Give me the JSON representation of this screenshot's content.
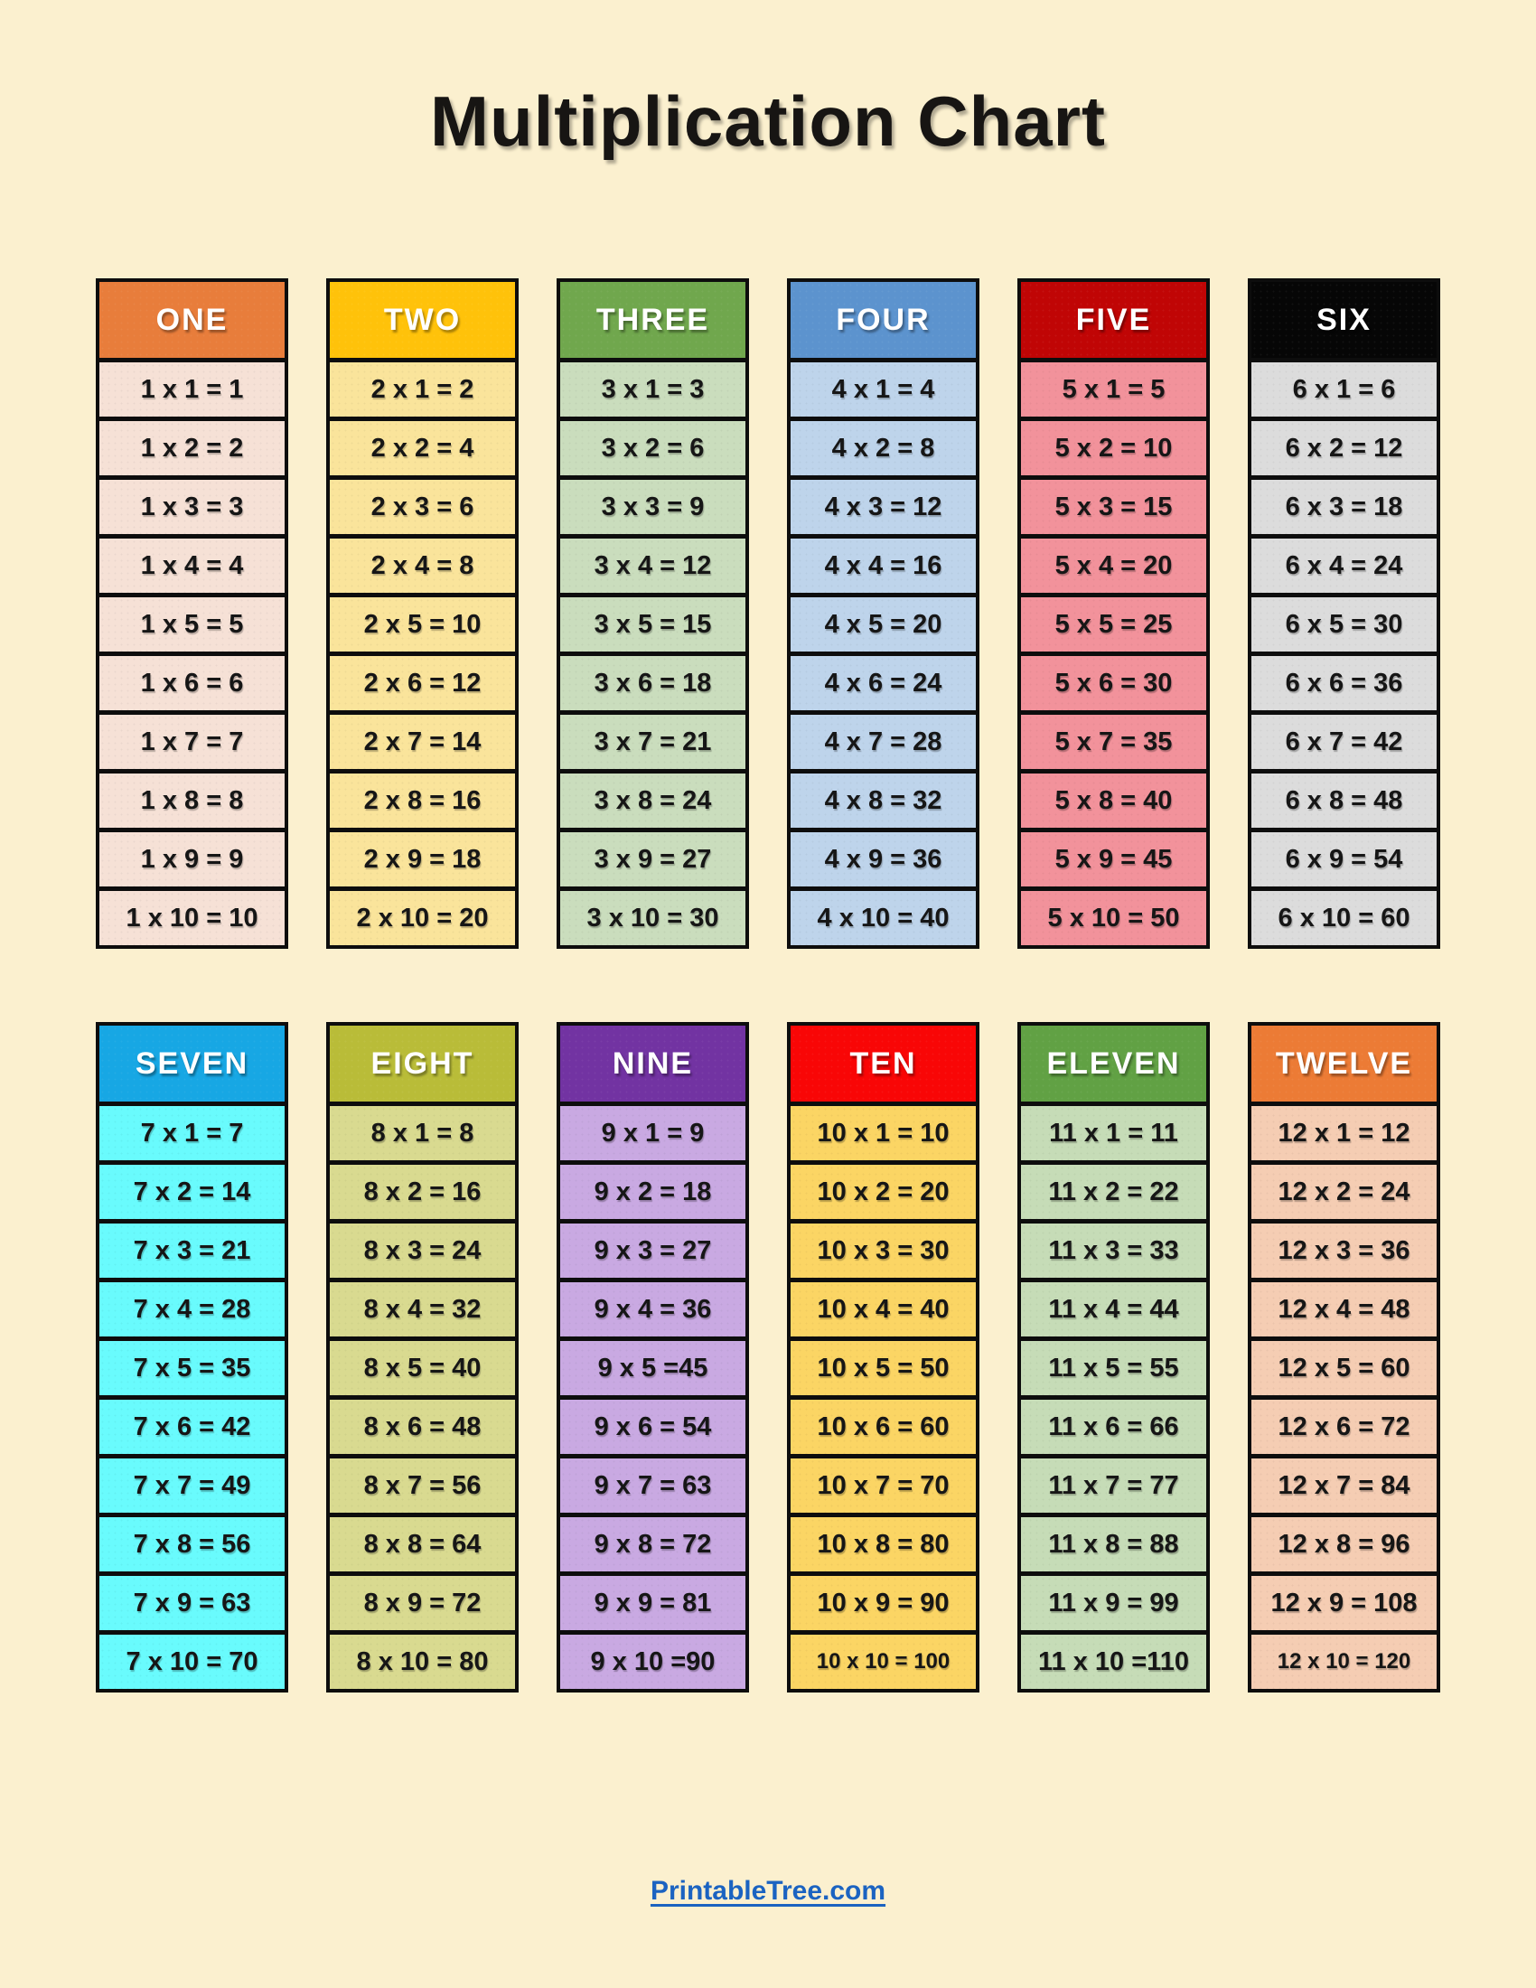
{
  "page": {
    "title": "Multiplication Chart"
  },
  "theme": {
    "background": "#FBF0CF",
    "border_color": "#0D0D0D",
    "cell_text_color": "#161616"
  },
  "groups": [
    {
      "tables": [
        {
          "label": "ONE",
          "header_bg": "#E87D3B",
          "header_text": "#FFFFFF",
          "body_bg": "#F6E1D6",
          "facts": [
            "1 x 1 = 1",
            "1 x 2 = 2",
            "1 x 3 = 3",
            "1 x 4 = 4",
            "1 x 5 = 5",
            "1 x 6 = 6",
            "1 x 7 = 7",
            "1 x 8 = 8",
            "1 x 9 = 9",
            "1 x 10 = 10"
          ]
        },
        {
          "label": "TWO",
          "header_bg": "#FFC20A",
          "header_text": "#FFFFFF",
          "body_bg": "#FAE49B",
          "facts": [
            "2 x 1 = 2",
            "2 x 2 = 4",
            "2 x 3 = 6",
            "2 x 4 = 8",
            "2 x 5 = 10",
            "2 x 6 = 12",
            "2 x 7 = 14",
            "2 x 8 = 16",
            "2 x 9 = 18",
            "2 x 10 = 20"
          ]
        },
        {
          "label": "THREE",
          "header_bg": "#70A74D",
          "header_text": "#FFFFFF",
          "body_bg": "#CADDBD",
          "facts": [
            "3 x 1 = 3",
            "3 x 2 = 6",
            "3 x 3 = 9",
            "3 x 4 = 12",
            "3 x 5 = 15",
            "3 x 6 = 18",
            "3 x 7 = 21",
            "3 x 8 = 24",
            "3 x 9 = 27",
            "3 x 10 = 30"
          ]
        },
        {
          "label": "FOUR",
          "header_bg": "#5C93CE",
          "header_text": "#FFFFFF",
          "body_bg": "#BED4EB",
          "facts": [
            "4 x 1 = 4",
            "4 x 2 = 8",
            "4 x 3 = 12",
            "4 x 4 = 16",
            "4 x 5 = 20",
            "4 x 6 = 24",
            "4 x 7 = 28",
            "4 x 8 = 32",
            "4 x 9 = 36",
            "4 x 10 = 40"
          ]
        },
        {
          "label": "FIVE",
          "header_bg": "#C00505",
          "header_text": "#FFFFFF",
          "body_bg": "#F2929B",
          "facts": [
            "5 x 1 = 5",
            "5 x 2 = 10",
            "5 x 3 = 15",
            "5 x 4 = 20",
            "5 x 5 = 25",
            "5 x 6 = 30",
            "5 x 7 = 35",
            "5 x 8 = 40",
            "5 x 9 = 45",
            "5 x 10 = 50"
          ]
        },
        {
          "label": "SIX",
          "header_bg": "#060606",
          "header_text": "#FFFFFF",
          "body_bg": "#DCDCDC",
          "facts": [
            "6 x 1 = 6",
            "6 x 2 = 12",
            "6 x 3 = 18",
            "6 x 4 = 24",
            "6 x 5 = 30",
            "6 x 6 = 36",
            "6 x 7 = 42",
            "6 x 8 = 48",
            "6 x 9 = 54",
            "6 x 10 = 60"
          ]
        }
      ]
    },
    {
      "tables": [
        {
          "label": "SEVEN",
          "header_bg": "#17A7E4",
          "header_text": "#FFFFFF",
          "body_bg": "#69FBFD",
          "facts": [
            "7 x 1 = 7",
            "7 x 2 = 14",
            "7 x 3 = 21",
            "7 x 4 = 28",
            "7 x 5 = 35",
            "7 x 6 = 42",
            "7 x 7 = 49",
            "7 x 8 = 56",
            "7 x 9 = 63",
            "7 x 10 = 70"
          ]
        },
        {
          "label": "EIGHT",
          "header_bg": "#B9BC38",
          "header_text": "#FFFFFF",
          "body_bg": "#D9DA90",
          "facts": [
            "8 x 1 = 8",
            "8 x 2 = 16",
            "8 x 3 = 24",
            "8 x 4 = 32",
            "8 x 5 = 40",
            "8 x 6 = 48",
            "8 x 7 = 56",
            "8 x 8 = 64",
            "8 x 9 = 72",
            "8 x 10 = 80"
          ]
        },
        {
          "label": "NINE",
          "header_bg": "#7233A2",
          "header_text": "#FFFFFF",
          "body_bg": "#C9A9E2",
          "facts": [
            "9 x 1 = 9",
            "9 x 2 = 18",
            "9 x 3 = 27",
            "9 x 4 = 36",
            "9 x 5 =45",
            "9 x 6 = 54",
            "9 x 7 = 63",
            "9 x 8 = 72",
            "9 x 9 = 81",
            "9 x 10 =90"
          ]
        },
        {
          "label": "TEN",
          "header_bg": "#F90606",
          "header_text": "#FFFFFF",
          "body_bg": "#FBD564",
          "facts": [
            "10 x 1 = 10",
            "10 x 2 = 20",
            "10 x 3 = 30",
            "10 x 4 = 40",
            "10 x 5 = 50",
            "10 x 6 = 60",
            "10 x 7 = 70",
            "10 x 8 = 80",
            "10 x 9 = 90",
            "10 x 10 = 100"
          ]
        },
        {
          "label": "ELEVEN",
          "header_bg": "#61A144",
          "header_text": "#FFFFFF",
          "body_bg": "#C6DCB7",
          "facts": [
            "11 x 1 = 11",
            "11 x 2 = 22",
            "11 x 3 = 33",
            "11 x 4 = 44",
            "11 x 5 = 55",
            "11 x 6 = 66",
            "11 x 7 = 77",
            "11 x 8 = 88",
            "11 x 9 = 99",
            "11 x 10 =110"
          ]
        },
        {
          "label": "TWELVE",
          "header_bg": "#EC7B35",
          "header_text": "#FFFFFF",
          "body_bg": "#F5CDB3",
          "facts": [
            "12 x 1 = 12",
            "12 x 2 = 24",
            "12 x 3 = 36",
            "12 x 4 = 48",
            "12 x 5 = 60",
            "12 x 6 = 72",
            "12 x 7 = 84",
            "12 x 8 = 96",
            "12 x 9 = 108",
            "12 x 10 = 120"
          ]
        }
      ]
    }
  ],
  "footer": {
    "link_label": "PrintableTree.com",
    "link_color": "#1B63C1"
  }
}
